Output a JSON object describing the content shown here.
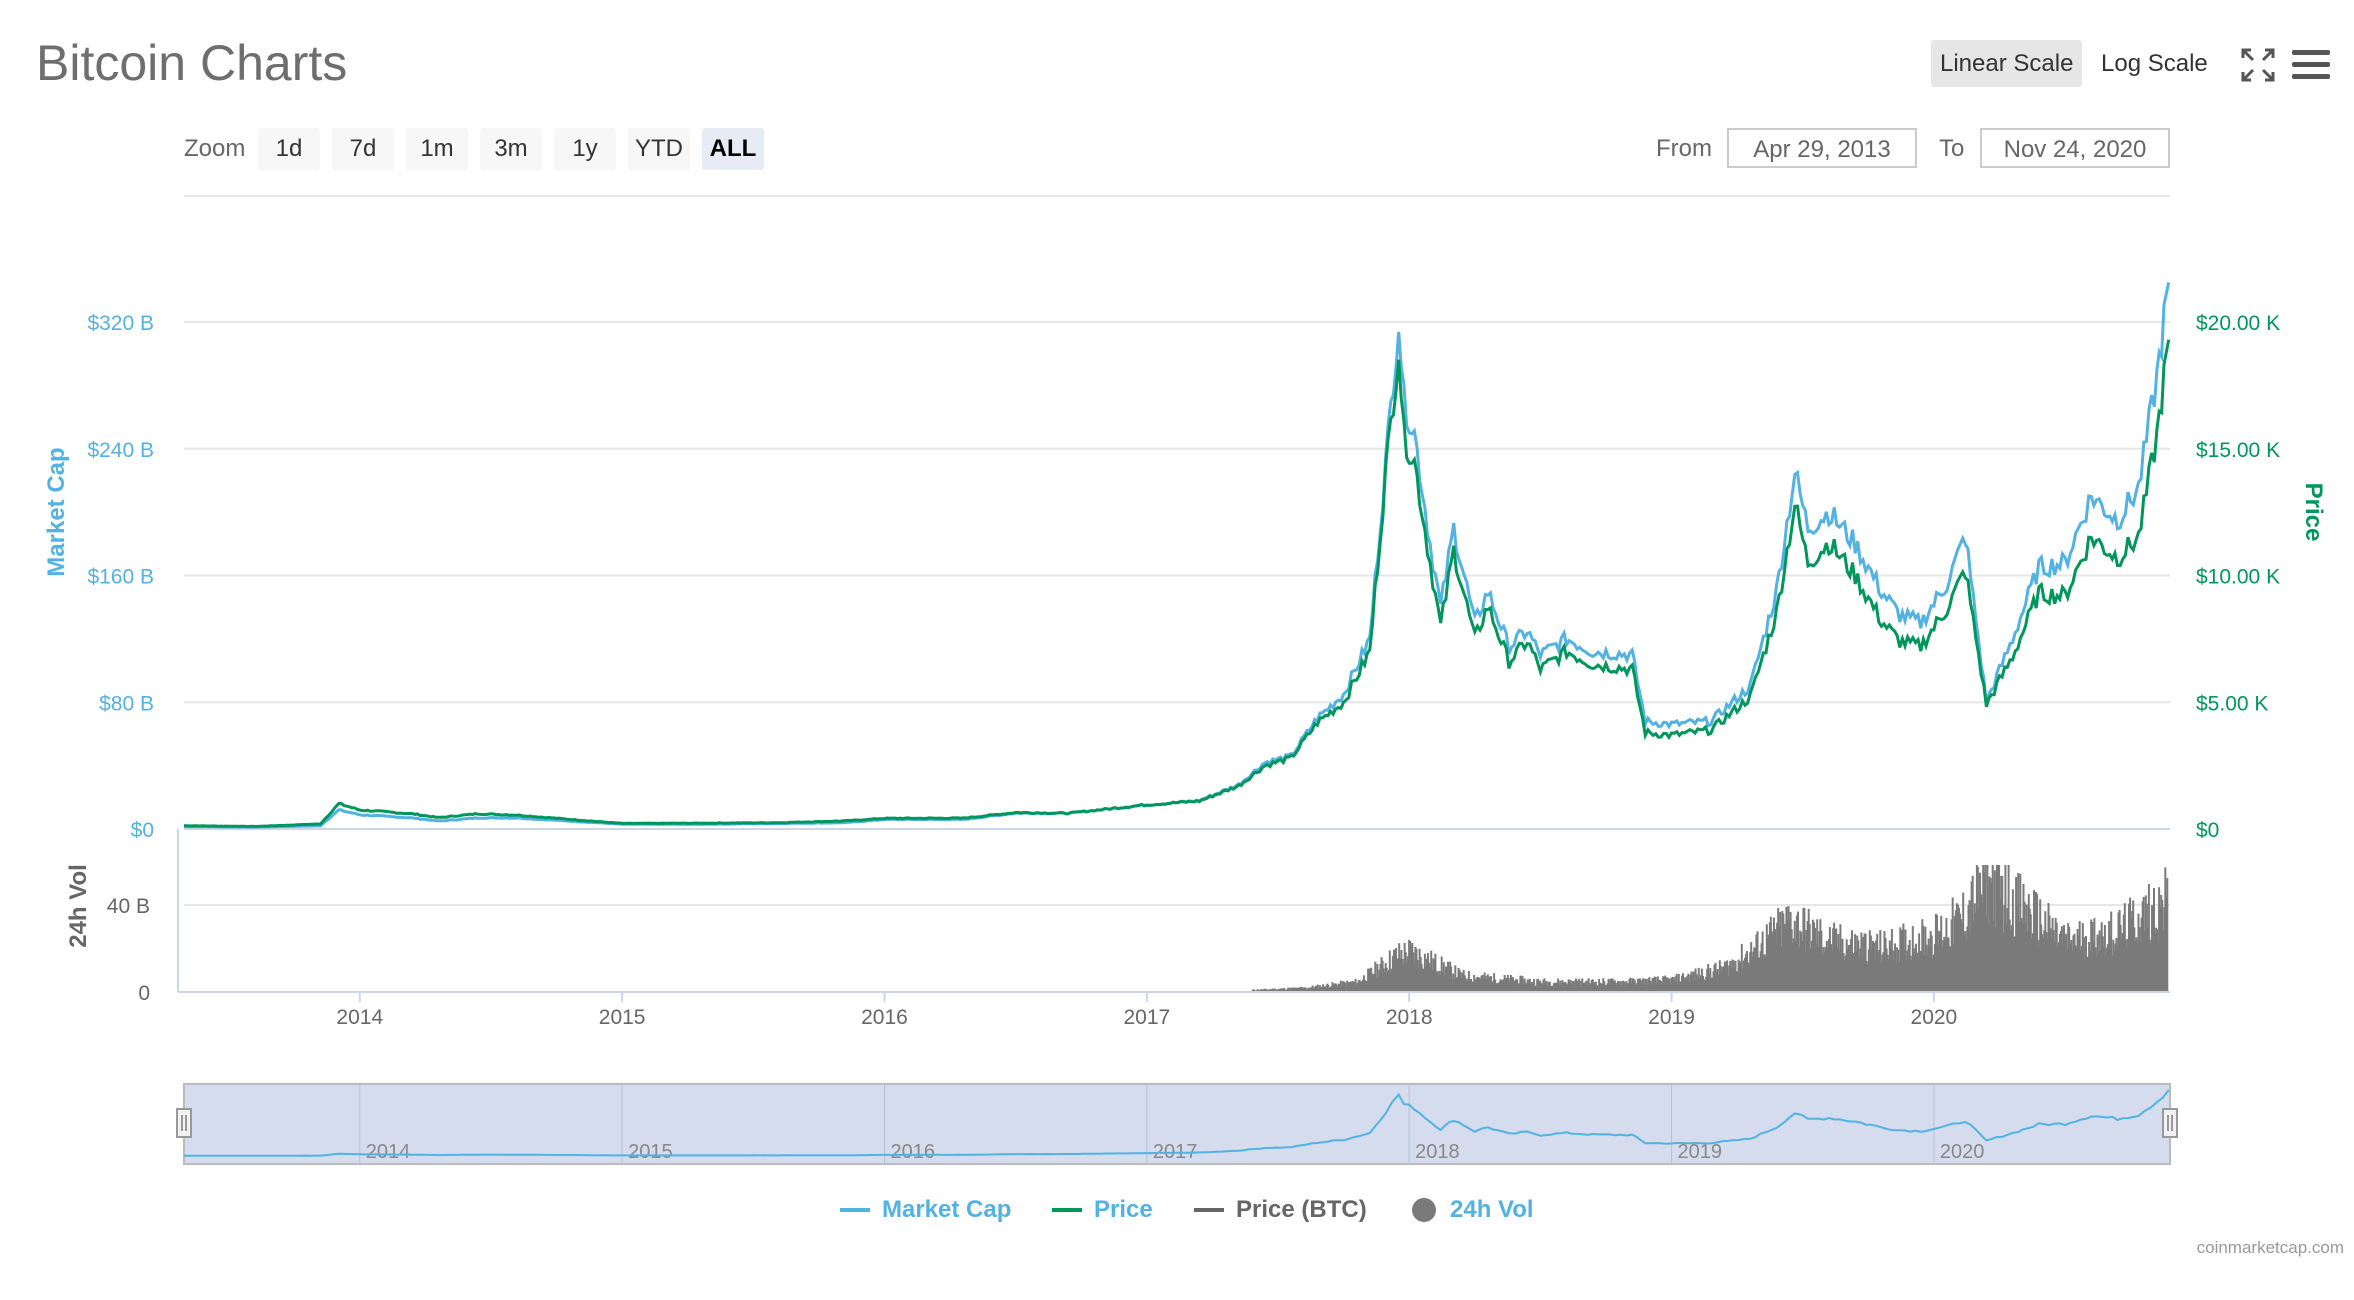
{
  "header": {
    "title": "Bitcoin Charts",
    "linear_scale_label": "Linear Scale",
    "log_scale_label": "Log Scale"
  },
  "zoom": {
    "label": "Zoom",
    "buttons": [
      "1d",
      "7d",
      "1m",
      "3m",
      "1y",
      "YTD",
      "ALL"
    ],
    "active": "ALL"
  },
  "range": {
    "from_label": "From",
    "from_value": "Apr 29, 2013",
    "to_label": "To",
    "to_value": "Nov 24, 2020"
  },
  "colors": {
    "market_cap": "#52b2e2",
    "price": "#00965c",
    "price_btc": "#666666",
    "volume": "#7a7a7a",
    "navigator_fill": "#ccd6eb"
  },
  "chart_data": {
    "type": "line",
    "title": "",
    "left_axis_title": "Market Cap",
    "right_axis_title": "Price",
    "volume_axis_title": "24h Vol",
    "market_cap_ticks": [
      "$0",
      "$80 B",
      "$160 B",
      "$240 B",
      "$320 B"
    ],
    "price_ticks": [
      "$0",
      "$5.00 K",
      "$10.00 K",
      "$15.00 K",
      "$20.00 K"
    ],
    "volume_ticks": [
      "0",
      "40 B"
    ],
    "x_tick_labels": [
      "2014",
      "2015",
      "2016",
      "2017",
      "2018",
      "2019",
      "2020"
    ],
    "market_cap_ylim_billion": [
      0,
      320
    ],
    "price_ylim": [
      0,
      20000
    ],
    "volume_ylim_billion": [
      0,
      40
    ],
    "x_range": [
      "2013-04-29",
      "2020-11-24"
    ],
    "series": [
      {
        "name": "Market Cap",
        "unit": "billion USD",
        "points": [
          [
            2013.33,
            1.5
          ],
          [
            2013.6,
            1.2
          ],
          [
            2013.85,
            2
          ],
          [
            2013.92,
            12
          ],
          [
            2014.0,
            9
          ],
          [
            2014.2,
            7
          ],
          [
            2014.3,
            5
          ],
          [
            2014.45,
            7
          ],
          [
            2014.6,
            7
          ],
          [
            2014.8,
            5
          ],
          [
            2015.0,
            3
          ],
          [
            2015.3,
            3
          ],
          [
            2015.6,
            3.5
          ],
          [
            2015.85,
            4
          ],
          [
            2016.0,
            6
          ],
          [
            2016.3,
            6
          ],
          [
            2016.5,
            10
          ],
          [
            2016.7,
            10
          ],
          [
            2016.99,
            15
          ],
          [
            2017.2,
            18
          ],
          [
            2017.35,
            28
          ],
          [
            2017.45,
            42
          ],
          [
            2017.55,
            46
          ],
          [
            2017.65,
            70
          ],
          [
            2017.75,
            85
          ],
          [
            2017.85,
            120
          ],
          [
            2017.91,
            230
          ],
          [
            2017.96,
            322
          ],
          [
            2017.98,
            270
          ],
          [
            2018.02,
            250
          ],
          [
            2018.08,
            180
          ],
          [
            2018.12,
            140
          ],
          [
            2018.17,
            190
          ],
          [
            2018.25,
            130
          ],
          [
            2018.3,
            150
          ],
          [
            2018.38,
            115
          ],
          [
            2018.45,
            125
          ],
          [
            2018.5,
            110
          ],
          [
            2018.6,
            120
          ],
          [
            2018.7,
            112
          ],
          [
            2018.85,
            110
          ],
          [
            2018.9,
            68
          ],
          [
            2019.0,
            66
          ],
          [
            2019.15,
            68
          ],
          [
            2019.3,
            90
          ],
          [
            2019.4,
            150
          ],
          [
            2019.47,
            225
          ],
          [
            2019.52,
            190
          ],
          [
            2019.6,
            200
          ],
          [
            2019.7,
            180
          ],
          [
            2019.8,
            150
          ],
          [
            2019.87,
            135
          ],
          [
            2019.95,
            130
          ],
          [
            2020.05,
            155
          ],
          [
            2020.12,
            185
          ],
          [
            2020.2,
            80
          ],
          [
            2020.3,
            120
          ],
          [
            2020.4,
            165
          ],
          [
            2020.5,
            168
          ],
          [
            2020.6,
            210
          ],
          [
            2020.7,
            195
          ],
          [
            2020.78,
            215
          ],
          [
            2020.85,
            285
          ],
          [
            2020.895,
            345
          ]
        ]
      },
      {
        "name": "Price",
        "unit": "USD",
        "points": [
          [
            2013.33,
            130
          ],
          [
            2013.6,
            100
          ],
          [
            2013.85,
            200
          ],
          [
            2013.92,
            1000
          ],
          [
            2014.0,
            750
          ],
          [
            2014.2,
            600
          ],
          [
            2014.3,
            450
          ],
          [
            2014.45,
            600
          ],
          [
            2014.6,
            550
          ],
          [
            2014.8,
            380
          ],
          [
            2015.0,
            220
          ],
          [
            2015.3,
            230
          ],
          [
            2015.6,
            250
          ],
          [
            2015.85,
            320
          ],
          [
            2016.0,
            420
          ],
          [
            2016.3,
            430
          ],
          [
            2016.5,
            650
          ],
          [
            2016.7,
            620
          ],
          [
            2016.99,
            950
          ],
          [
            2017.2,
            1100
          ],
          [
            2017.35,
            1700
          ],
          [
            2017.45,
            2500
          ],
          [
            2017.55,
            2800
          ],
          [
            2017.65,
            4200
          ],
          [
            2017.75,
            5000
          ],
          [
            2017.85,
            7000
          ],
          [
            2017.91,
            14000
          ],
          [
            2017.96,
            19000
          ],
          [
            2017.98,
            15500
          ],
          [
            2018.02,
            14500
          ],
          [
            2018.08,
            10500
          ],
          [
            2018.12,
            8000
          ],
          [
            2018.17,
            11000
          ],
          [
            2018.25,
            7500
          ],
          [
            2018.3,
            8800
          ],
          [
            2018.38,
            6600
          ],
          [
            2018.45,
            7400
          ],
          [
            2018.5,
            6300
          ],
          [
            2018.6,
            7000
          ],
          [
            2018.7,
            6500
          ],
          [
            2018.85,
            6300
          ],
          [
            2018.9,
            3800
          ],
          [
            2019.0,
            3700
          ],
          [
            2019.15,
            3900
          ],
          [
            2019.3,
            5200
          ],
          [
            2019.4,
            8500
          ],
          [
            2019.47,
            12800
          ],
          [
            2019.52,
            10500
          ],
          [
            2019.6,
            11300
          ],
          [
            2019.7,
            10000
          ],
          [
            2019.8,
            8200
          ],
          [
            2019.87,
            7400
          ],
          [
            2019.95,
            7200
          ],
          [
            2020.05,
            8700
          ],
          [
            2020.12,
            10200
          ],
          [
            2020.2,
            4900
          ],
          [
            2020.3,
            6800
          ],
          [
            2020.4,
            9300
          ],
          [
            2020.5,
            9200
          ],
          [
            2020.6,
            11500
          ],
          [
            2020.7,
            10700
          ],
          [
            2020.78,
            11500
          ],
          [
            2020.85,
            15500
          ],
          [
            2020.895,
            19300
          ]
        ]
      },
      {
        "name": "Price (BTC)",
        "unit": "BTC",
        "points": []
      },
      {
        "name": "24h Vol",
        "unit": "billion USD",
        "points": [
          [
            2017.4,
            1
          ],
          [
            2017.6,
            2
          ],
          [
            2017.8,
            5
          ],
          [
            2017.95,
            18
          ],
          [
            2018.0,
            20
          ],
          [
            2018.2,
            8
          ],
          [
            2018.5,
            5
          ],
          [
            2018.8,
            5
          ],
          [
            2019.0,
            6
          ],
          [
            2019.2,
            12
          ],
          [
            2019.3,
            20
          ],
          [
            2019.45,
            35
          ],
          [
            2019.6,
            25
          ],
          [
            2019.8,
            22
          ],
          [
            2020.0,
            28
          ],
          [
            2020.1,
            36
          ],
          [
            2020.2,
            55
          ],
          [
            2020.35,
            40
          ],
          [
            2020.5,
            25
          ],
          [
            2020.7,
            30
          ],
          [
            2020.8,
            38
          ],
          [
            2020.89,
            45
          ]
        ]
      }
    ],
    "legend": [
      "Market Cap",
      "Price",
      "Price (BTC)",
      "24h Vol"
    ],
    "legend_position": "bottom",
    "grid": true
  },
  "navigator": {
    "year_labels": [
      "2014",
      "2015",
      "2016",
      "2017",
      "2018",
      "2019",
      "2020"
    ],
    "left_handle": "from",
    "right_handle": "to"
  },
  "credits": "coinmarketcap.com"
}
